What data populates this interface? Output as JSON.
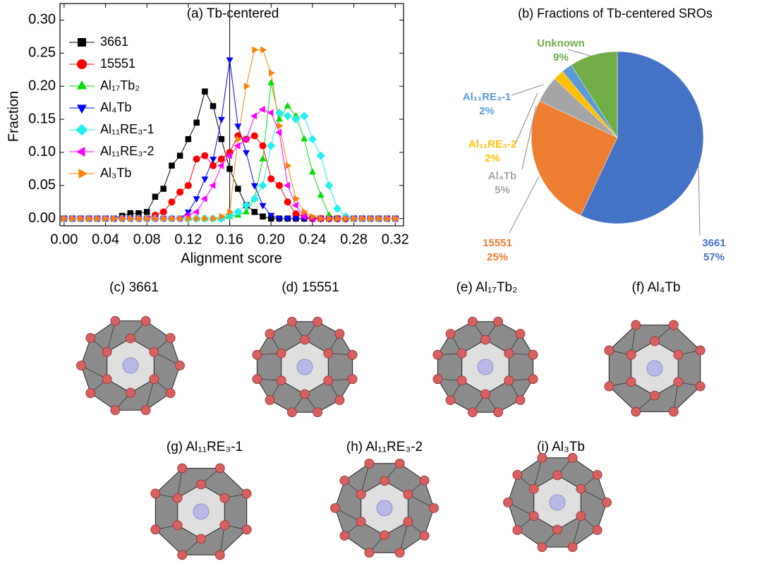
{
  "chart_data": [
    {
      "type": "line",
      "title": "(a) Tb-centered",
      "x_label": "Alignment score",
      "y_label": "Fraction",
      "x": [
        0,
        0.008,
        0.016,
        0.024,
        0.032,
        0.04,
        0.048,
        0.056,
        0.064,
        0.072,
        0.08,
        0.088,
        0.096,
        0.104,
        0.112,
        0.12,
        0.128,
        0.136,
        0.144,
        0.152,
        0.16,
        0.168,
        0.176,
        0.184,
        0.192,
        0.2,
        0.208,
        0.216,
        0.224,
        0.232,
        0.24,
        0.248,
        0.256,
        0.264,
        0.272,
        0.28,
        0.288,
        0.296,
        0.304,
        0.312,
        0.32
      ],
      "series": [
        {
          "name": "3661",
          "color": "#000000",
          "marker": "square",
          "values": [
            0,
            0,
            0,
            0,
            0,
            0,
            0,
            0.004,
            0.008,
            0.008,
            0.01,
            0.033,
            0.045,
            0.08,
            0.095,
            0.12,
            0.145,
            0.192,
            0.17,
            0.12,
            0.075,
            0.045,
            0.02,
            0.01,
            0.003,
            0,
            0,
            0,
            0,
            0,
            0,
            0,
            0,
            0,
            0,
            0,
            0,
            0,
            0,
            0,
            0
          ]
        },
        {
          "name": "15551",
          "color": "#ff0000",
          "marker": "circle",
          "values": [
            0,
            0,
            0,
            0,
            0,
            0,
            0,
            0,
            0,
            0,
            0,
            0.005,
            0.01,
            0.025,
            0.04,
            0.05,
            0.09,
            0.095,
            0.08,
            0.09,
            0.1,
            0.125,
            0.12,
            0.125,
            0.11,
            0.06,
            0.05,
            0.025,
            0.007,
            0.003,
            0,
            0,
            0,
            0,
            0,
            0,
            0,
            0,
            0,
            0,
            0
          ]
        },
        {
          "name": "Al₁₇Tb₂",
          "color": "#00dd00",
          "marker": "triangle-up",
          "values": [
            0,
            0,
            0,
            0,
            0,
            0,
            0,
            0,
            0,
            0,
            0,
            0,
            0,
            0,
            0,
            0,
            0,
            0,
            0,
            0,
            0.003,
            0.005,
            0.01,
            0.03,
            0.09,
            0.205,
            0.15,
            0.17,
            0.155,
            0.12,
            0.07,
            0.035,
            0.005,
            0,
            0,
            0,
            0,
            0,
            0,
            0,
            0
          ]
        },
        {
          "name": "Al₄Tb",
          "color": "#0000ff",
          "marker": "triangle-down",
          "values": [
            0,
            0,
            0,
            0,
            0,
            0,
            0,
            0,
            0,
            0,
            0,
            0,
            0,
            0,
            0,
            0.01,
            0.03,
            0.06,
            0.09,
            0.15,
            0.24,
            0.14,
            0.1,
            0.05,
            0.02,
            0.005,
            0,
            0,
            0,
            0,
            0,
            0,
            0,
            0,
            0,
            0,
            0,
            0,
            0,
            0,
            0
          ]
        },
        {
          "name": "Al₁₁RE₃-1",
          "color": "#22eeee",
          "marker": "diamond",
          "values": [
            0,
            0,
            0,
            0,
            0,
            0,
            0,
            0,
            0,
            0,
            0,
            0,
            0,
            0,
            0,
            0,
            0,
            0,
            0,
            0,
            0.005,
            0.01,
            0.02,
            0.03,
            0.05,
            0.11,
            0.16,
            0.155,
            0.15,
            0.155,
            0.12,
            0.095,
            0.05,
            0.015,
            0.003,
            0,
            0,
            0,
            0,
            0,
            0
          ]
        },
        {
          "name": "Al₁₁RE₃-2",
          "color": "#ff00ff",
          "marker": "triangle-left",
          "values": [
            0,
            0,
            0,
            0,
            0,
            0,
            0,
            0,
            0,
            0,
            0,
            0,
            0,
            0,
            0,
            0.005,
            0.01,
            0.03,
            0.05,
            0.08,
            0.095,
            0.11,
            0.12,
            0.155,
            0.165,
            0.16,
            0.13,
            0.05,
            0.02,
            0.003,
            0,
            0,
            0,
            0,
            0,
            0,
            0,
            0,
            0,
            0,
            0
          ]
        },
        {
          "name": "Al₃Tb",
          "color": "#ff8000",
          "marker": "triangle-right",
          "values": [
            0,
            0,
            0,
            0,
            0,
            0,
            0,
            0,
            0,
            0,
            0,
            0,
            0,
            0,
            0,
            0,
            0,
            0,
            0,
            0.003,
            0.01,
            0.12,
            0.2,
            0.255,
            0.255,
            0.22,
            0.14,
            0.08,
            0.03,
            0.01,
            0.003,
            0,
            0,
            0,
            0,
            0,
            0,
            0,
            0,
            0,
            0
          ]
        }
      ],
      "vline": 0.16,
      "xlim": [
        -0.004,
        0.328
      ],
      "ylim": [
        -0.011,
        0.325
      ],
      "xticks": [
        {
          "value": 0,
          "label": "0.00"
        },
        {
          "value": 0.04,
          "label": "0.04"
        },
        {
          "value": 0.08,
          "label": "0.08"
        },
        {
          "value": 0.12,
          "label": "0.12"
        },
        {
          "value": 0.16,
          "label": "0.16"
        },
        {
          "value": 0.2,
          "label": "0.20"
        },
        {
          "value": 0.24,
          "label": "0.24"
        },
        {
          "value": 0.28,
          "label": "0.28"
        },
        {
          "value": 0.32,
          "label": "0.32"
        }
      ],
      "yticks": [
        {
          "value": 0,
          "label": "0.00"
        },
        {
          "value": 0.05,
          "label": "0.05"
        },
        {
          "value": 0.1,
          "label": "0.10"
        },
        {
          "value": 0.15,
          "label": "0.15"
        },
        {
          "value": 0.2,
          "label": "0.20"
        },
        {
          "value": 0.25,
          "label": "0.25"
        },
        {
          "value": 0.3,
          "label": "0.30"
        }
      ],
      "legend": "upper left"
    },
    {
      "type": "pie",
      "title": "(b) Fractions of Tb-centered SROs",
      "categories": [
        "3661",
        "15551",
        "Al₄Tb",
        "Al₁₁RE₃-2",
        "Al₁₁RE₃-1",
        "Unknown"
      ],
      "values": [
        57,
        25,
        5,
        2,
        2,
        9
      ],
      "value_labels": [
        "57%",
        "25%",
        "5%",
        "2%",
        "2%",
        "9%"
      ],
      "colors": [
        "#4472c4",
        "#ed7d31",
        "#a5a5a5",
        "#ffc000",
        "#5b9bd5",
        "#70ad47"
      ]
    }
  ],
  "structures": [
    {
      "label": "(c) 3661"
    },
    {
      "label": "(d) 15551"
    },
    {
      "label": "(e) Al₁₇Tb₂"
    },
    {
      "label": "(f) Al₄Tb"
    },
    {
      "label": "(g) Al₁₁RE₃-1"
    },
    {
      "label": "(h) Al₁₁RE₃-2"
    },
    {
      "label": "(i) Al₃Tb"
    }
  ]
}
